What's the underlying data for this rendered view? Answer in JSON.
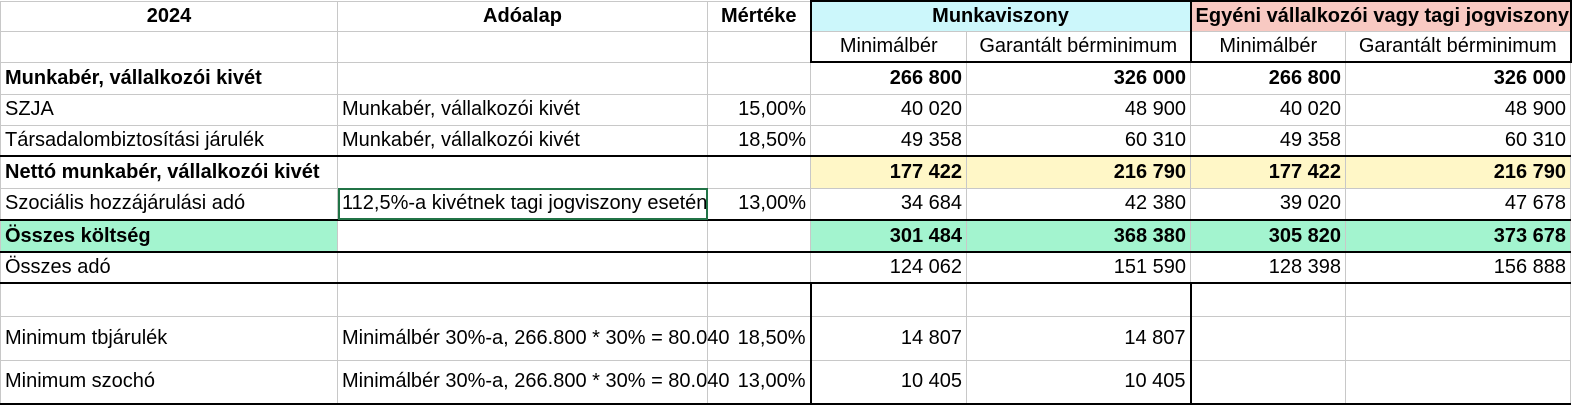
{
  "header": {
    "year": "2024",
    "base": "Adóalap",
    "rate": "Mértéke",
    "group1": "Munkaviszony",
    "group2": "Egyéni vállalkozói vagy tagi jogviszony",
    "sub1": "Minimálbér",
    "sub2": "Garantált bérminimum",
    "sub3": "Minimálbér",
    "sub4": "Garantált bérminimum"
  },
  "rows": [
    {
      "label": "Munkabér, vállalkozói kivét",
      "base": "",
      "rate": "",
      "v1": "266 800",
      "v2": "326 000",
      "v3": "266 800",
      "v4": "326 000"
    },
    {
      "label": "SZJA",
      "base": "Munkabér, vállalkozói kivét",
      "rate": "15,00%",
      "v1": "40 020",
      "v2": "48 900",
      "v3": "40 020",
      "v4": "48 900"
    },
    {
      "label": "Társadalombiztosítási járulék",
      "base": "Munkabér, vállalkozói kivét",
      "rate": "18,50%",
      "v1": "49 358",
      "v2": "60 310",
      "v3": "49 358",
      "v4": "60 310"
    },
    {
      "label": "Nettó munkabér, vállalkozói kivét",
      "base": "",
      "rate": "",
      "v1": "177 422",
      "v2": "216 790",
      "v3": "177 422",
      "v4": "216 790"
    },
    {
      "label": "Szociális hozzájárulási adó",
      "base": "112,5%-a kivétnek tagi jogviszony esetén",
      "rate": "13,00%",
      "v1": "34 684",
      "v2": "42 380",
      "v3": "39 020",
      "v4": "47 678"
    },
    {
      "label": "Összes költség",
      "base": "",
      "rate": "",
      "v1": "301 484",
      "v2": "368 380",
      "v3": "305 820",
      "v4": "373 678"
    },
    {
      "label": "Összes adó",
      "base": "",
      "rate": "",
      "v1": "124 062",
      "v2": "151 590",
      "v3": "128 398",
      "v4": "156 888"
    },
    {
      "label": "Minimum tbjárulék",
      "base": "Minimálbér 30%-a, 266.800 * 30% = 80.040",
      "rate": "18,50%",
      "v1": "14 807",
      "v2": "14 807"
    },
    {
      "label": "Minimum szochó",
      "base": "Minimálbér 30%-a, 266.800 * 30% = 80.040",
      "rate": "13,00%",
      "v1": "10 405",
      "v2": "10 405"
    }
  ]
}
